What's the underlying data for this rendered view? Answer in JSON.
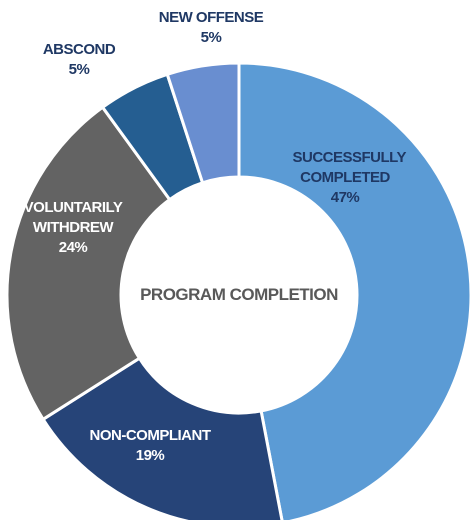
{
  "chart_data": {
    "type": "donut",
    "center_label": "PROGRAM COMPLETION",
    "categories": [
      "SUCCESSFULLY COMPLETED",
      "NON-COMPLIANT",
      "VOLUNTARILY WITHDREW",
      "ABSCOND",
      "NEW OFFENSE"
    ],
    "values": [
      47,
      19,
      24,
      5,
      5
    ],
    "value_labels": [
      "47%",
      "19%",
      "24%",
      "5%",
      "5%"
    ],
    "colors": [
      "#5b9bd5",
      "#264478",
      "#636363",
      "#255e91",
      "#698ed0"
    ]
  }
}
